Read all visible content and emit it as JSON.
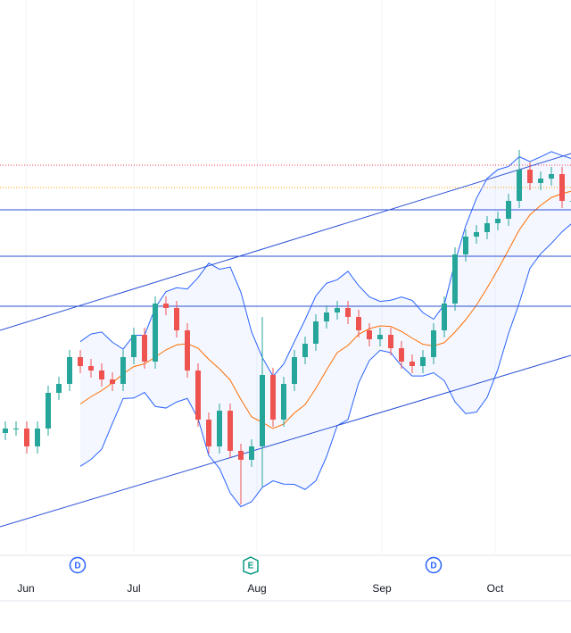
{
  "chart_data": {
    "type": "candlestick",
    "xlim": [
      0,
      640
    ],
    "ylim": [
      0,
      620
    ],
    "xticks": [
      {
        "value": 29,
        "label": "Jun"
      },
      {
        "value": 150,
        "label": "Jul"
      },
      {
        "value": 288,
        "label": "Aug"
      },
      {
        "value": 428,
        "label": "Sep"
      },
      {
        "value": 555,
        "label": "Oct"
      }
    ],
    "grid": true,
    "up_color": "#26a69a",
    "down_color": "#ef5350",
    "x": [
      6,
      18,
      30,
      42,
      54,
      66,
      78,
      90,
      102,
      114,
      126,
      138,
      150,
      162,
      174,
      186,
      198,
      210,
      222,
      234,
      246,
      258,
      270,
      282,
      294,
      306,
      318,
      330,
      342,
      354,
      366,
      378,
      390,
      402,
      414,
      426,
      438,
      450,
      462,
      474,
      486,
      498,
      510,
      522,
      534,
      546,
      558,
      570,
      582,
      594,
      606,
      618,
      630,
      642
    ],
    "open": [
      135,
      140,
      140,
      120,
      140,
      180,
      190,
      220,
      210,
      205,
      195,
      190,
      220,
      245,
      215,
      280,
      275,
      250,
      205,
      150,
      120,
      160,
      115,
      105,
      120,
      200,
      150,
      190,
      220,
      235,
      260,
      270,
      275,
      265,
      250,
      240,
      245,
      230,
      215,
      210,
      220,
      250,
      280,
      335,
      355,
      360,
      370,
      375,
      395,
      430,
      415,
      420,
      425,
      395
    ],
    "high": [
      148,
      148,
      148,
      148,
      188,
      198,
      228,
      228,
      218,
      213,
      203,
      228,
      253,
      253,
      288,
      288,
      283,
      258,
      213,
      158,
      168,
      168,
      123,
      128,
      265,
      208,
      198,
      228,
      243,
      268,
      278,
      283,
      283,
      273,
      258,
      253,
      253,
      238,
      223,
      228,
      258,
      288,
      343,
      363,
      368,
      378,
      383,
      403,
      452,
      438,
      428,
      433,
      433,
      403
    ],
    "low": [
      127,
      132,
      112,
      112,
      132,
      172,
      182,
      202,
      197,
      187,
      182,
      182,
      212,
      207,
      207,
      267,
      242,
      197,
      142,
      112,
      112,
      107,
      55,
      97,
      75,
      142,
      142,
      182,
      212,
      227,
      252,
      262,
      257,
      242,
      232,
      232,
      222,
      207,
      202,
      202,
      212,
      242,
      272,
      327,
      347,
      352,
      362,
      367,
      387,
      407,
      407,
      412,
      387,
      387
    ],
    "close": [
      140,
      140,
      120,
      140,
      180,
      190,
      220,
      210,
      205,
      195,
      190,
      220,
      245,
      215,
      280,
      275,
      250,
      205,
      150,
      120,
      160,
      115,
      105,
      120,
      200,
      150,
      190,
      220,
      235,
      260,
      270,
      275,
      265,
      250,
      240,
      245,
      230,
      215,
      210,
      220,
      250,
      280,
      335,
      355,
      360,
      370,
      375,
      395,
      430,
      415,
      420,
      425,
      395,
      395
    ],
    "bollinger": {
      "period": 8,
      "mult": 2,
      "band_color": "#2962ff",
      "basis_color": "#ff6d00"
    },
    "levels": [
      {
        "value": 435,
        "color": "#f23645",
        "style": "dotted"
      },
      {
        "value": 410,
        "color": "#ff9800",
        "style": "dotted"
      },
      {
        "value": 385,
        "color": "#2a4fd6",
        "style": "solid"
      },
      {
        "value": 333,
        "color": "#2a4fd6",
        "style": "solid"
      },
      {
        "value": 277,
        "color": "#2a4fd6",
        "style": "solid"
      }
    ],
    "channels": [
      {
        "x": [
          0,
          640
        ],
        "y": [
          250,
          448
        ],
        "color": "#2a4fd6"
      },
      {
        "x": [
          0,
          640
        ],
        "y": [
          30,
          222
        ],
        "color": "#2a4fd6"
      }
    ],
    "events": [
      {
        "x": 87,
        "label": "D",
        "color": "#2962ff"
      },
      {
        "x": 281,
        "label": "E",
        "color": "#089981"
      },
      {
        "x": 486,
        "label": "D",
        "color": "#2962ff"
      }
    ]
  }
}
